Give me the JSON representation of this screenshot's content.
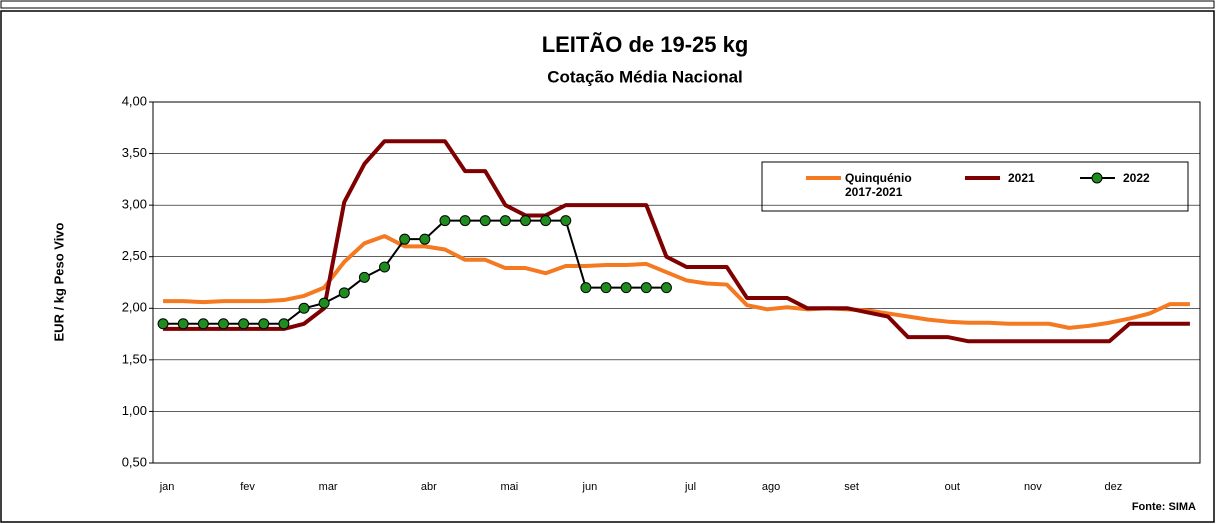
{
  "chart_data": {
    "type": "line",
    "title": "LEITÃO de 19-25 kg",
    "subtitle": "Cotação Média Nacional",
    "y_label": "EUR / kg Peso Vivo",
    "source": "Fonte: SIMA",
    "categories": [
      "jan",
      null,
      null,
      null,
      "fev",
      null,
      null,
      null,
      "mar",
      null,
      null,
      null,
      null,
      "abr",
      null,
      null,
      null,
      "mai",
      null,
      null,
      null,
      "jun",
      null,
      null,
      null,
      null,
      "jul",
      null,
      null,
      null,
      "ago",
      null,
      null,
      null,
      "set",
      null,
      null,
      null,
      null,
      "out",
      null,
      null,
      null,
      "nov",
      null,
      null,
      null,
      "dez",
      null,
      null,
      null,
      null
    ],
    "series": [
      {
        "name": "Quinquénio 2017-2021",
        "color": "#f47920",
        "values": [
          2.07,
          2.07,
          2.06,
          2.07,
          2.07,
          2.07,
          2.08,
          2.12,
          2.2,
          2.45,
          2.63,
          2.7,
          2.6,
          2.6,
          2.57,
          2.47,
          2.47,
          2.39,
          2.39,
          2.34,
          2.41,
          2.41,
          2.42,
          2.42,
          2.43,
          2.35,
          2.27,
          2.24,
          2.23,
          2.03,
          1.99,
          2.01,
          1.99,
          2.0,
          1.99,
          1.98,
          1.95,
          1.92,
          1.89,
          1.87,
          1.86,
          1.86,
          1.85,
          1.85,
          1.85,
          1.81,
          1.83,
          1.86,
          1.9,
          1.95,
          2.04,
          2.04
        ]
      },
      {
        "name": "2021",
        "color": "#7f0000",
        "values": [
          1.8,
          1.8,
          1.8,
          1.8,
          1.8,
          1.8,
          1.8,
          1.85,
          2.0,
          3.03,
          3.4,
          3.62,
          3.62,
          3.62,
          3.62,
          3.33,
          3.33,
          3.0,
          2.9,
          2.9,
          3.0,
          3.0,
          3.0,
          3.0,
          3.0,
          2.5,
          2.4,
          2.4,
          2.4,
          2.1,
          2.1,
          2.1,
          2.0,
          2.0,
          2.0,
          1.96,
          1.92,
          1.72,
          1.72,
          1.72,
          1.68,
          1.68,
          1.68,
          1.68,
          1.68,
          1.68,
          1.68,
          1.68,
          1.85,
          1.85,
          1.85,
          1.85
        ]
      },
      {
        "name": "2022",
        "color": "#000000",
        "marker_color": "#1e8c1e",
        "values": [
          1.85,
          1.85,
          1.85,
          1.85,
          1.85,
          1.85,
          1.85,
          2.0,
          2.05,
          2.15,
          2.3,
          2.4,
          2.67,
          2.67,
          2.85,
          2.85,
          2.85,
          2.85,
          2.85,
          2.85,
          2.85,
          2.2,
          2.2,
          2.2,
          2.2,
          2.2,
          null,
          null,
          null,
          null,
          null,
          null,
          null,
          null,
          null,
          null,
          null,
          null,
          null,
          null,
          null,
          null,
          null,
          null,
          null,
          null,
          null,
          null,
          null,
          null,
          null,
          null
        ]
      }
    ],
    "ylim": [
      0.5,
      4
    ],
    "yticks": [
      {
        "value": 0.5,
        "label": "0,50"
      },
      {
        "value": 1,
        "label": "1,00"
      },
      {
        "value": 1.5,
        "label": "1,50"
      },
      {
        "value": 2,
        "label": "2,00"
      },
      {
        "value": 2.5,
        "label": "2,50"
      },
      {
        "value": 3,
        "label": "3,00"
      },
      {
        "value": 3.5,
        "label": "3,50"
      },
      {
        "value": 4,
        "label": "4,00"
      }
    ],
    "grid": true
  }
}
